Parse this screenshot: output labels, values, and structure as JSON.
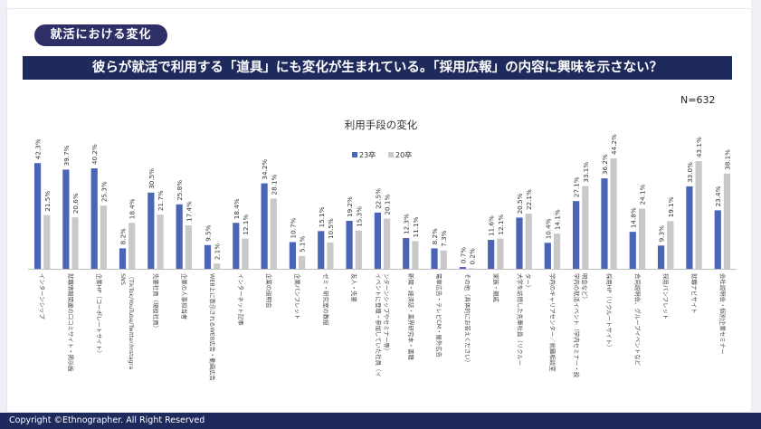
{
  "section_title": "就活における変化",
  "headline": "彼らが就活で利用する「道具」にも変化が生まれている。「採用広報」の内容に興味を示さない？",
  "sample_size": "N=632",
  "footer": "Copyright ©Ethnographer. All Right Reserved",
  "colors": {
    "series_23": "#4a64b6",
    "series_20": "#c9c9c9",
    "navy": "#1f2a5c"
  },
  "chart_data": {
    "type": "bar",
    "title": "利用手段の変化",
    "legend_position": "top-center",
    "grid": false,
    "ylim": [
      0,
      50
    ],
    "categories": [
      "インターンシップ",
      "就職情報関連の口コミサイト・掲示板",
      "企業HP（コーポレートサイト）",
      "SNS\n（TikTok/YouTube/Twitter/Instagra",
      "先輩社員（現役社員）",
      "企業の人事担当者",
      "WEB上に表示されるWEB広告・動画広告",
      "インターネット記事",
      "企業の説明会",
      "企業パンフレット",
      "ゼミ・研究室の教授",
      "友人・先輩",
      "イベントに登壇・参加していた社員（イ\nンターンシップやセミナー等）",
      "新聞・経済誌・業界研究本・書籍",
      "電車広告・テレビCM・屋外広告",
      "その他（具体的にお答えください）",
      "家族・親戚",
      "大学を訪問した先輩社員（リクルー\nター）",
      "学内のキャリアセンター／就職相談室",
      "学内の就活イベント（学内セミナー・説\n明会など）",
      "採用HP（リクルートサイト）",
      "合同説明会、グループイベントなど",
      "採用パンフレット",
      "就職ナビサイト",
      "会社説明会・個別企業セミナー"
    ],
    "series": [
      {
        "name": "23卒",
        "values": [
          42.3,
          39.7,
          40.2,
          8.2,
          30.5,
          25.8,
          9.5,
          18.4,
          34.2,
          10.7,
          15.1,
          19.2,
          22.5,
          12.3,
          8.2,
          0.7,
          11.6,
          20.5,
          10.4,
          27.1,
          36.2,
          14.8,
          9.3,
          33.0,
          23.4
        ],
        "labels": [
          "42.3%",
          "39.7%",
          "40.2%",
          "8.2%",
          "30.5%",
          "25.8%",
          "9.5%",
          "18.4%",
          "34.2%",
          "10.7%",
          "15.1%",
          "19.2%",
          "22.5%",
          "12.3%",
          "8.2%",
          "0.7%",
          "11.6%",
          "20.5%",
          "10.4%",
          "27.1%",
          "36.2%",
          "14.8%",
          "9.3%",
          "33.0%",
          "23.4%"
        ]
      },
      {
        "name": "20卒",
        "values": [
          21.5,
          20.6,
          25.3,
          18.4,
          21.7,
          17.4,
          2.1,
          12.1,
          28.1,
          5.1,
          10.5,
          15.3,
          20.1,
          11.1,
          7.3,
          0.2,
          12.1,
          22.1,
          14.1,
          33.1,
          44.2,
          24.1,
          19.1,
          43.1,
          38.1
        ],
        "labels": [
          "21.5%",
          "20.6%",
          "25.3%",
          "18.4%",
          "21.7%",
          "17.4%",
          "2.1%",
          "12.1%",
          "28.1%",
          "5.1%",
          "10.5%",
          "15.3%",
          "20.1%",
          "11.1%",
          "7.3%",
          "0.2%",
          "12.1%",
          "22.1%",
          "14.1%",
          "33.1%",
          "44.2%",
          "24.1%",
          "19.1%",
          "43.1%",
          "38.1%"
        ]
      }
    ]
  }
}
